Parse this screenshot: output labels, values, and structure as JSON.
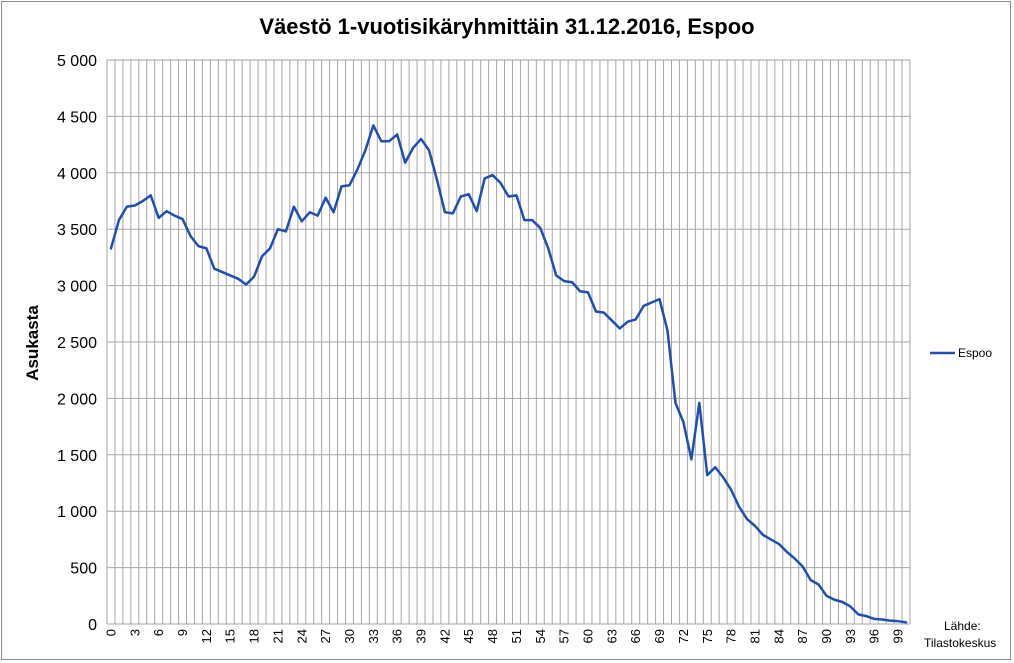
{
  "chart_data": {
    "type": "line",
    "title": "Väestö 1-vuotisikäryhmittäin 31.12.2016, Espoo",
    "ylabel": "Asukasta",
    "xlabel": "",
    "ylim": [
      0,
      5000
    ],
    "yticks": [
      0,
      500,
      1000,
      1500,
      2000,
      2500,
      3000,
      3500,
      4000,
      4500,
      5000
    ],
    "ytick_labels": [
      "0",
      "500",
      "1 000",
      "1 500",
      "2 000",
      "2 500",
      "3 000",
      "3 500",
      "4 000",
      "4 500",
      "5 000"
    ],
    "xtick_labels": [
      "0",
      "3",
      "6",
      "9",
      "12",
      "15",
      "18",
      "21",
      "24",
      "27",
      "30",
      "33",
      "36",
      "39",
      "42",
      "45",
      "48",
      "51",
      "54",
      "57",
      "60",
      "63",
      "66",
      "69",
      "72",
      "75",
      "78",
      "81",
      "84",
      "87",
      "90",
      "93",
      "96",
      "99"
    ],
    "x": [
      0,
      1,
      2,
      3,
      4,
      5,
      6,
      7,
      8,
      9,
      10,
      11,
      12,
      13,
      14,
      15,
      16,
      17,
      18,
      19,
      20,
      21,
      22,
      23,
      24,
      25,
      26,
      27,
      28,
      29,
      30,
      31,
      32,
      33,
      34,
      35,
      36,
      37,
      38,
      39,
      40,
      41,
      42,
      43,
      44,
      45,
      46,
      47,
      48,
      49,
      50,
      51,
      52,
      53,
      54,
      55,
      56,
      57,
      58,
      59,
      60,
      61,
      62,
      63,
      64,
      65,
      66,
      67,
      68,
      69,
      70,
      71,
      72,
      73,
      74,
      75,
      76,
      77,
      78,
      79,
      80,
      81,
      82,
      83,
      84,
      85,
      86,
      87,
      88,
      89,
      90,
      91,
      92,
      93,
      94,
      95,
      96,
      97,
      98,
      99,
      100
    ],
    "grid": true,
    "legend_position": "right",
    "series": [
      {
        "name": "Espoo",
        "color": "#1f4fb4",
        "values": [
          3330,
          3580,
          3700,
          3710,
          3750,
          3800,
          3600,
          3660,
          3620,
          3590,
          3440,
          3350,
          3330,
          3150,
          3120,
          3090,
          3060,
          3010,
          3080,
          3260,
          3330,
          3500,
          3480,
          3700,
          3570,
          3650,
          3620,
          3780,
          3650,
          3880,
          3890,
          4030,
          4200,
          4420,
          4280,
          4280,
          4340,
          4090,
          4220,
          4300,
          4200,
          3940,
          3650,
          3640,
          3790,
          3810,
          3660,
          3950,
          3980,
          3910,
          3790,
          3800,
          3580,
          3580,
          3510,
          3330,
          3090,
          3040,
          3030,
          2950,
          2940,
          2770,
          2760,
          2690,
          2620,
          2680,
          2700,
          2820,
          2850,
          2880,
          2600,
          1960,
          1790,
          1460,
          1960,
          1320,
          1390,
          1300,
          1190,
          1040,
          930,
          870,
          790,
          750,
          710,
          640,
          580,
          510,
          390,
          350,
          250,
          215,
          195,
          155,
          85,
          70,
          45,
          40,
          30,
          25,
          15
        ]
      }
    ],
    "source_label": "Lähde:",
    "source_name": "Tilastokeskus"
  }
}
